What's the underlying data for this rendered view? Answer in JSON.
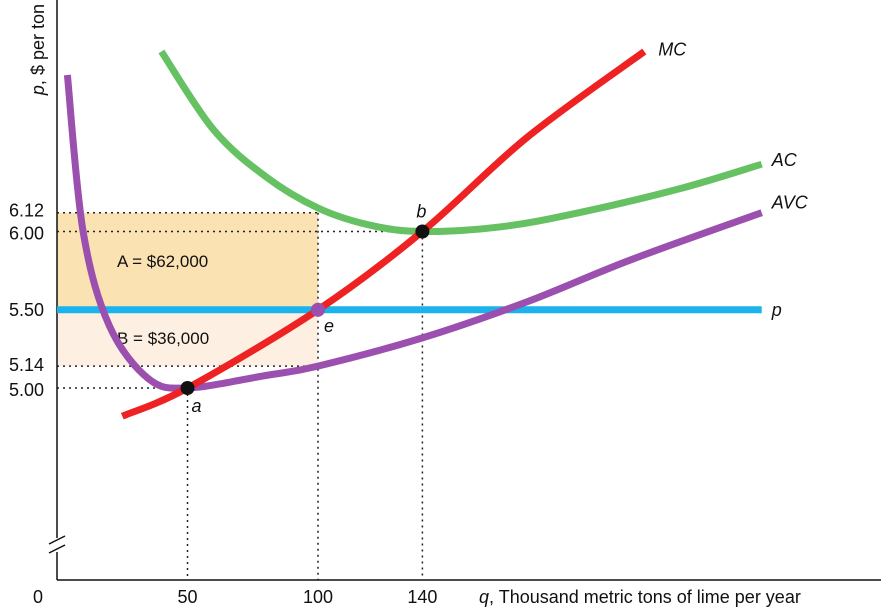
{
  "chart_data": {
    "type": "line",
    "xlabel": {
      "var": "q",
      "rest": ", Thousand metric tons of lime per year"
    },
    "ylabel": {
      "var": "p",
      "rest": ", $ per ton"
    },
    "x_ticks": [
      0,
      50,
      100,
      140
    ],
    "y_ticks": [
      5.0,
      5.14,
      5.5,
      6.0,
      6.12
    ],
    "y_tick_labels": [
      "5.00",
      "5.14",
      "5.50",
      "6.00",
      "6.12"
    ],
    "x_tick_labels": [
      "0",
      "50",
      "100",
      "140"
    ],
    "y_axis_break": true,
    "xlim": [
      0,
      310
    ],
    "ylim": [
      4.3,
      7.15
    ],
    "series": [
      {
        "name": "MC",
        "color": "#ee2222",
        "x": [
          25,
          50,
          100,
          140,
          180,
          225
        ],
        "y": [
          4.82,
          5.0,
          5.5,
          6.0,
          6.6,
          7.15
        ]
      },
      {
        "name": "AC",
        "color": "#66c163",
        "x": [
          40,
          60,
          80,
          100,
          120,
          140,
          170,
          200,
          240,
          270
        ],
        "y": [
          7.15,
          6.65,
          6.35,
          6.15,
          6.04,
          6.0,
          6.03,
          6.12,
          6.28,
          6.43
        ]
      },
      {
        "name": "AVC",
        "color": "#9b4fae",
        "x": [
          4,
          10,
          20,
          35,
          50,
          80,
          100,
          140,
          180,
          220,
          270
        ],
        "y": [
          7.0,
          6.0,
          5.4,
          5.06,
          5.0,
          5.08,
          5.14,
          5.32,
          5.55,
          5.82,
          6.12
        ]
      },
      {
        "name": "p",
        "color": "#1ab3ec",
        "x": [
          0,
          270
        ],
        "y": [
          5.5,
          5.5
        ]
      }
    ],
    "points": [
      {
        "label": "a",
        "x": 50,
        "y": 5.0,
        "color": "#111111"
      },
      {
        "label": "e",
        "x": 100,
        "y": 5.5,
        "color": "#9b4fae"
      },
      {
        "label": "b",
        "x": 140,
        "y": 6.0,
        "color": "#111111"
      }
    ],
    "areas": [
      {
        "label": "A = $62,000",
        "x0": 0,
        "x1": 100,
        "y0": 5.5,
        "y1": 6.12,
        "color": "#fbe2b3"
      },
      {
        "label": "B = $36,000",
        "x0": 0,
        "x1": 100,
        "y0": 5.14,
        "y1": 5.5,
        "color": "#fdf0e2"
      }
    ]
  }
}
